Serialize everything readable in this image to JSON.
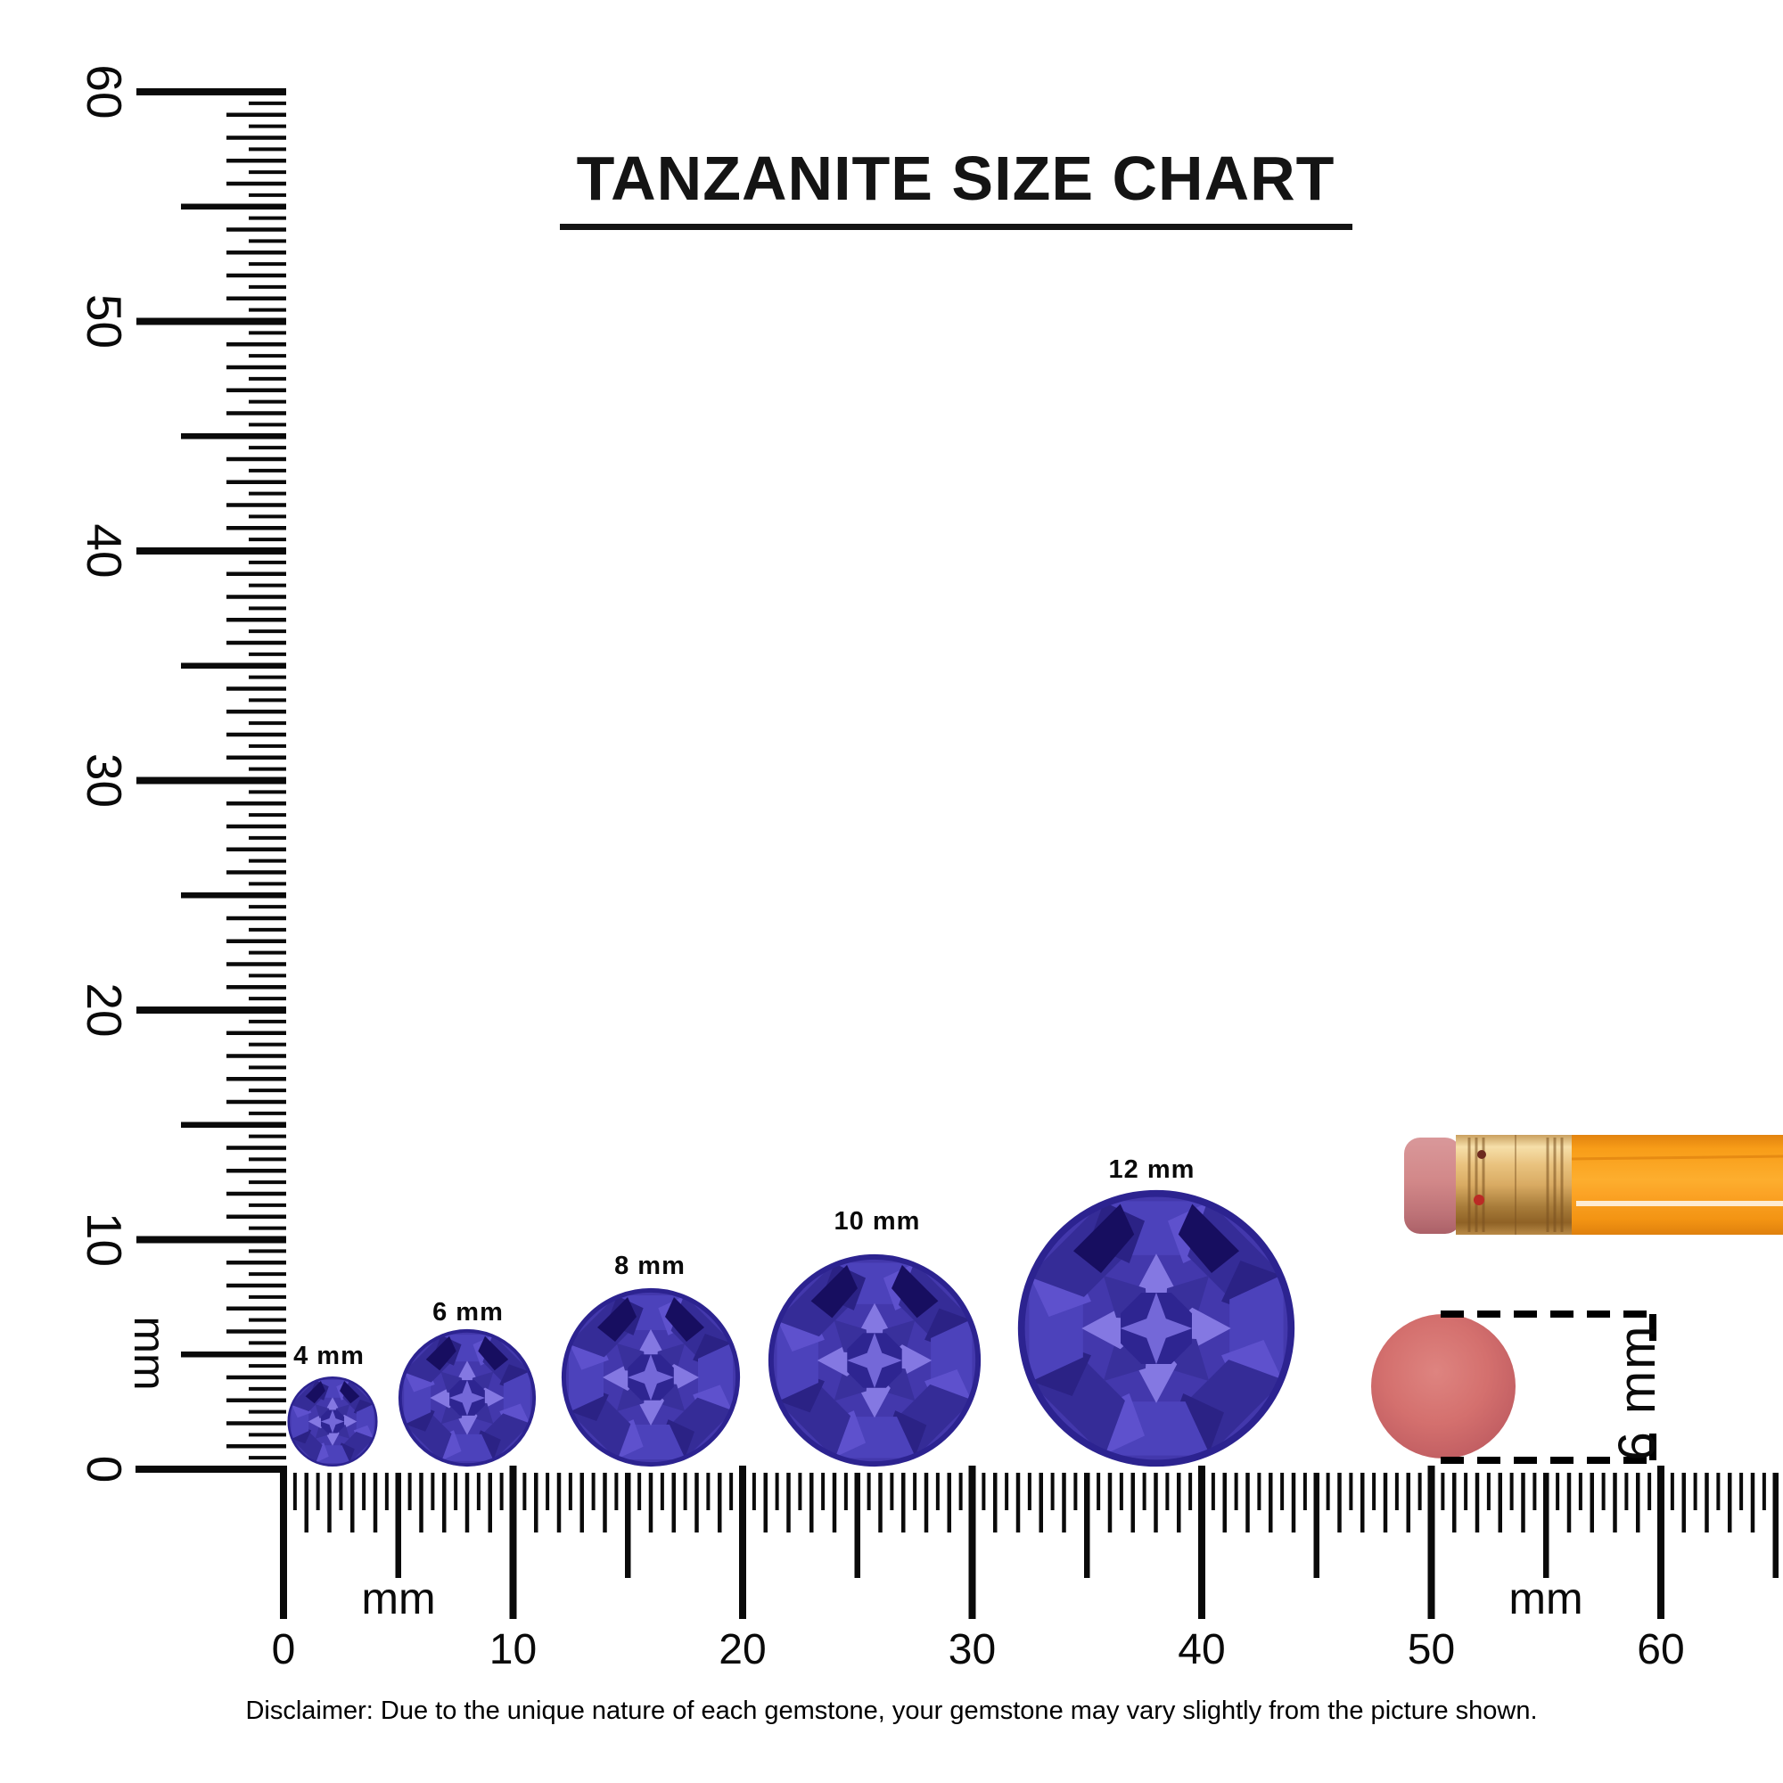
{
  "title": {
    "text": "TANZANITE SIZE CHART"
  },
  "disclaimer": "Disclaimer: Due to the unique nature of each gemstone, your gemstone may vary slightly from the picture shown.",
  "rulers": {
    "unit": "mm",
    "vertical": {
      "numbers": [
        "60",
        "50",
        "40",
        "30",
        "20",
        "10",
        "0"
      ],
      "unit_label": "mm",
      "range_mm": [
        0,
        60
      ]
    },
    "horizontal": {
      "numbers": [
        "0",
        "10",
        "20",
        "30",
        "40",
        "50",
        "60"
      ],
      "unit_labels": [
        "mm",
        "mm"
      ],
      "range_mm": [
        0,
        65.5
      ]
    }
  },
  "gems": [
    {
      "label": "4 mm",
      "size_mm": 4
    },
    {
      "label": "6 mm",
      "size_mm": 6
    },
    {
      "label": "8 mm",
      "size_mm": 8
    },
    {
      "label": "10 mm",
      "size_mm": 10
    },
    {
      "label": "12 mm",
      "size_mm": 12
    }
  ],
  "scale_reference": {
    "circle_label": "6 mm",
    "objects": [
      "pencil",
      "pencil-eraser-top-view"
    ]
  },
  "colors": {
    "ink": "#0a0a0a",
    "gem": {
      "base": "#4338ac",
      "girdleDark": "#352c97",
      "girdleLight": "#4c42bb",
      "bezelLight": "#5e51cd",
      "bezelDark": "#2b2285",
      "rayLight": "#8478e2",
      "rayDark": "#39309c",
      "table": "#2e2591",
      "star": "#7468d8",
      "notch": "#170e60",
      "rim": "#2c2390"
    },
    "pencil": {
      "body": "#f89d18",
      "bodyDark": "#e2830f",
      "bodyLight": "#fdb239",
      "highlight": "#ffffff",
      "ferruleLight": "#f6dfa9",
      "ferrule": "#dcab63",
      "ferruleDark": "#8f6226",
      "eraser": "#d28889",
      "eraserDark": "#b16a70",
      "dot": "#bb2a25"
    },
    "eraser_circle": {
      "main": "#d4706e",
      "light": "#dd837e",
      "dark": "#bf5c61"
    }
  }
}
